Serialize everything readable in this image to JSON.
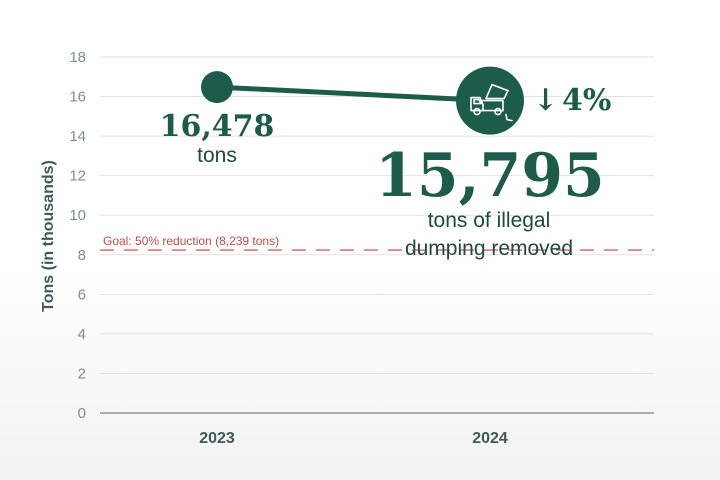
{
  "colors": {
    "series": "#1d5c4b",
    "goal_line": "#d2605a",
    "grid": "#e2e2e2",
    "axis": "#8a9a97"
  },
  "icons": {
    "marker_2024": "dump-truck-icon"
  },
  "chart_data": {
    "type": "line",
    "categories": [
      "2023",
      "2024"
    ],
    "values": [
      16.478,
      15.795
    ],
    "ylabel": "Tons  (in thousands)",
    "ylim": [
      0,
      18
    ],
    "yticks": [
      "0",
      "2",
      "4",
      "6",
      "8",
      "10",
      "12",
      "14",
      "16",
      "18"
    ],
    "grid": true,
    "goal": {
      "value": 8.239,
      "label": "Goal: 50% reduction (8,239 tons)"
    },
    "annotations": {
      "first_value": "16,478",
      "first_unit": "tons",
      "second_value": "15,795",
      "second_unit_line1": "tons of illegal",
      "second_unit_line2": "dumping removed",
      "change_arrow": "↓",
      "change": "4%"
    }
  }
}
